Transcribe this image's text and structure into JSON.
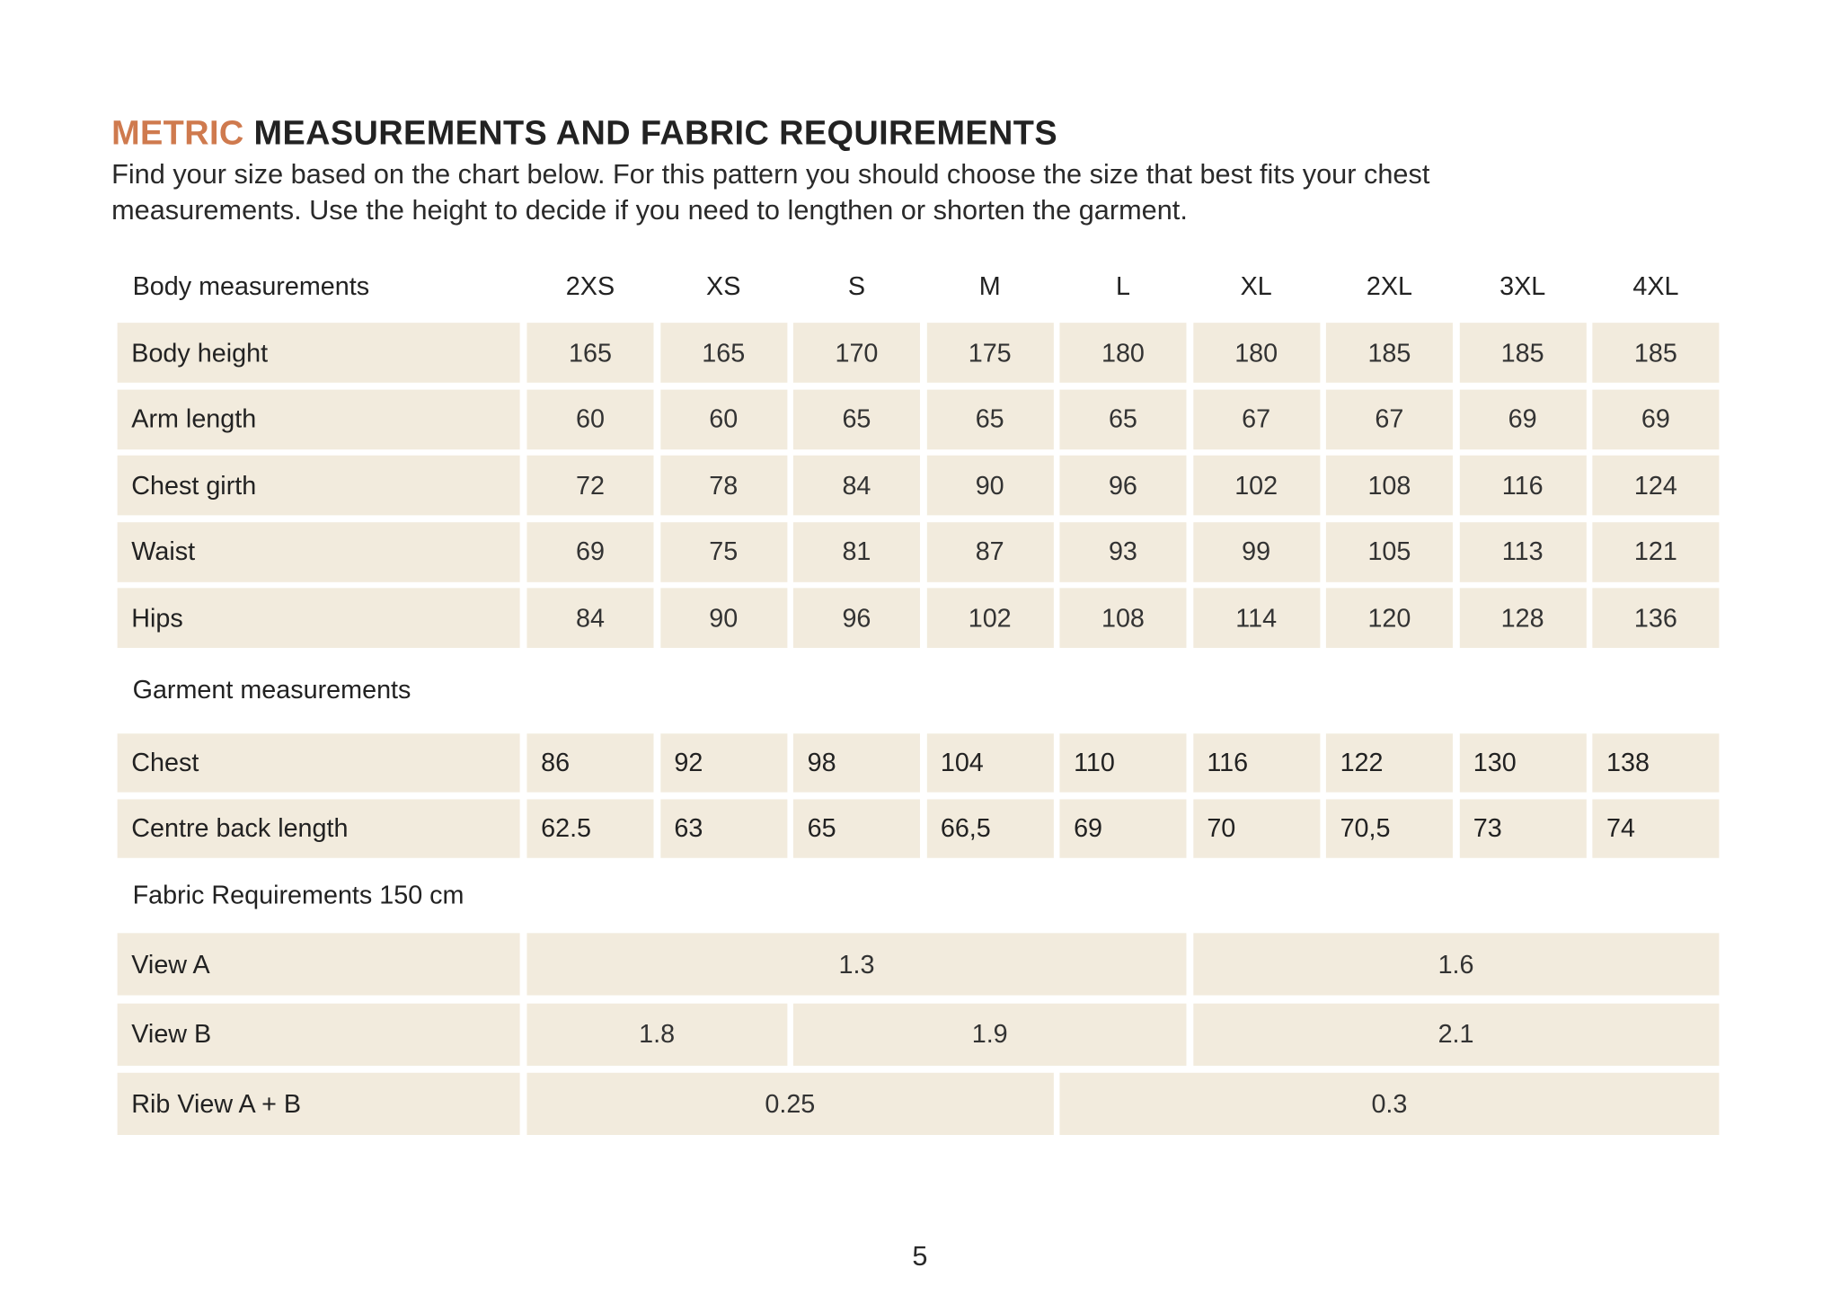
{
  "header": {
    "title_accent": "METRIC",
    "title": "MEASUREMENTS AND FABRIC REQUIREMENTS",
    "description": [
      "Find your size based on the chart below. For this pattern you should choose the size that best fits your chest",
      "measurements. Use the height to decide if you need to lengthen or shorten the garment."
    ]
  },
  "body": {
    "label": "Body measurements",
    "sizes": [
      "2XS",
      "XS",
      "S",
      "M",
      "L",
      "XL",
      "2XL",
      "3XL",
      "4XL"
    ],
    "rows": [
      {
        "label": "Body height",
        "values": [
          165,
          165,
          170,
          175,
          180,
          180,
          185,
          185,
          185
        ]
      },
      {
        "label": "Arm length",
        "values": [
          60,
          60,
          65,
          65,
          65,
          67,
          67,
          69,
          69
        ]
      },
      {
        "label": "Chest girth",
        "values": [
          72,
          78,
          84,
          90,
          96,
          102,
          108,
          116,
          124
        ]
      },
      {
        "label": "Waist",
        "values": [
          69,
          75,
          81,
          87,
          93,
          99,
          105,
          113,
          121
        ]
      },
      {
        "label": "Hips",
        "values": [
          84,
          90,
          96,
          102,
          108,
          114,
          120,
          128,
          136
        ]
      }
    ]
  },
  "garment": {
    "label": "Garment measurements",
    "rows": [
      {
        "label": "Chest",
        "values": [
          86,
          92,
          98,
          104,
          110,
          116,
          122,
          130,
          138
        ]
      },
      {
        "label": "Centre back length",
        "values": [
          62.5,
          63,
          65,
          "66,5",
          69,
          70,
          "70,5",
          73,
          74
        ]
      }
    ]
  },
  "fabric": {
    "label": "Fabric Requirements 150 cm",
    "rows": [
      {
        "label": "View A",
        "values": [
          1.3,
          1.6
        ]
      },
      {
        "label": "View B",
        "values": [
          1.8,
          1.9,
          2.1
        ]
      },
      {
        "label": "Rib View A + B",
        "values": [
          0.25,
          0.3
        ]
      }
    ]
  },
  "page_number": 5
}
